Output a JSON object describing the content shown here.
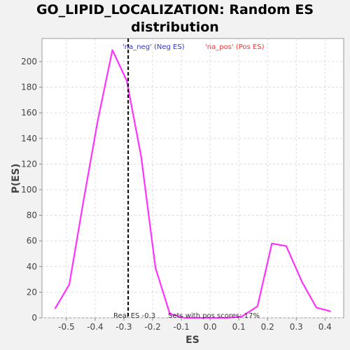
{
  "chart_data": {
    "type": "line",
    "title_lines": [
      "GO_LIPID_LOCALIZATION: Random ES",
      "distribution"
    ],
    "xlabel": "ES",
    "ylabel": "P(ES)",
    "xlim": [
      -0.585,
      0.465
    ],
    "ylim": [
      0,
      218
    ],
    "xticks": [
      -0.5,
      -0.4,
      -0.3,
      -0.2,
      -0.1,
      0.0,
      0.1,
      0.2,
      0.3,
      0.4
    ],
    "xtick_labels": [
      "-0.5",
      "-0.4",
      "-0.3",
      "-0.2",
      "-0.1",
      "0.0",
      "0.1",
      "0.2",
      "0.3",
      "0.4"
    ],
    "yticks": [
      0,
      20,
      40,
      60,
      80,
      100,
      120,
      140,
      160,
      180,
      200
    ],
    "grid": true,
    "series": [
      {
        "color": "#ff33ff",
        "x": [
          -0.54,
          -0.49,
          -0.44,
          -0.39,
          -0.34,
          -0.29,
          -0.24,
          -0.19,
          -0.14,
          -0.09,
          -0.04,
          0.01,
          0.06,
          0.11,
          0.165,
          0.215,
          0.265,
          0.32,
          0.37,
          0.42
        ],
        "y": [
          7,
          26,
          92,
          155,
          209,
          185,
          126,
          39,
          3,
          0,
          0,
          0,
          0,
          1,
          9,
          58,
          56,
          28,
          8,
          5
        ]
      }
    ],
    "real_es_line": {
      "x": -0.285,
      "style": "dashed",
      "color": "#000000"
    },
    "legend": [
      {
        "text": "'na_neg' (Neg ES)",
        "color": "#3333cc"
      },
      {
        "text": "'na_pos' (Pos ES)",
        "color": "#ff3333"
      }
    ],
    "annotations": {
      "real_es": "Real ES -0.3",
      "pos_scores": "Sets with pos scores: 17%"
    }
  }
}
